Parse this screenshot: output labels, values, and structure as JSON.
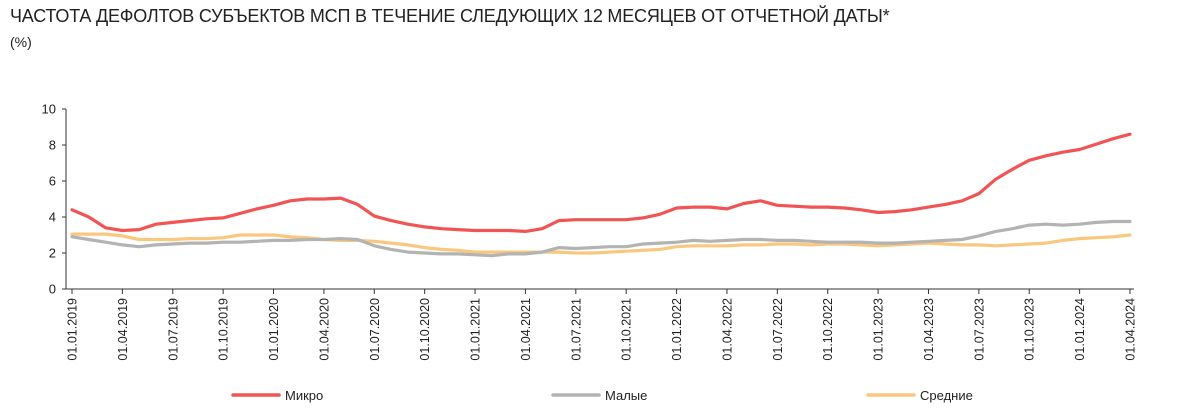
{
  "chart_data": {
    "type": "line",
    "title": "ЧАСТОТА ДЕФОЛТОВ СУБЪЕКТОВ МСП В ТЕЧЕНИЕ СЛЕДУЮЩИХ 12 МЕСЯЦЕВ ОТ ОТЧЕТНОЙ ДАТЫ*",
    "subtitle": "(%)",
    "ylim": [
      0,
      10
    ],
    "yticks": [
      0,
      2,
      4,
      6,
      8,
      10
    ],
    "grid": false,
    "legend_position": "bottom",
    "x_tick_labels": [
      "01.01.2019",
      "01.04.2019",
      "01.07.2019",
      "01.10.2019",
      "01.01.2020",
      "01.04.2020",
      "01.07.2020",
      "01.10.2020",
      "01.01.2021",
      "01.04.2021",
      "01.07.2021",
      "01.10.2021",
      "01.01.2022",
      "01.04.2022",
      "01.07.2022",
      "01.10.2022",
      "01.01.2023",
      "01.04.2023",
      "01.07.2023",
      "01.10.2023",
      "01.01.2024",
      "01.04.2024"
    ],
    "x": [
      "01.01.2019",
      "01.02.2019",
      "01.03.2019",
      "01.04.2019",
      "01.05.2019",
      "01.06.2019",
      "01.07.2019",
      "01.08.2019",
      "01.09.2019",
      "01.10.2019",
      "01.11.2019",
      "01.12.2019",
      "01.01.2020",
      "01.02.2020",
      "01.03.2020",
      "01.04.2020",
      "01.05.2020",
      "01.06.2020",
      "01.07.2020",
      "01.08.2020",
      "01.09.2020",
      "01.10.2020",
      "01.11.2020",
      "01.12.2020",
      "01.01.2021",
      "01.02.2021",
      "01.03.2021",
      "01.04.2021",
      "01.05.2021",
      "01.06.2021",
      "01.07.2021",
      "01.08.2021",
      "01.09.2021",
      "01.10.2021",
      "01.11.2021",
      "01.12.2021",
      "01.01.2022",
      "01.02.2022",
      "01.03.2022",
      "01.04.2022",
      "01.05.2022",
      "01.06.2022",
      "01.07.2022",
      "01.08.2022",
      "01.09.2022",
      "01.10.2022",
      "01.11.2022",
      "01.12.2022",
      "01.01.2023",
      "01.02.2023",
      "01.03.2023",
      "01.04.2023",
      "01.05.2023",
      "01.06.2023",
      "01.07.2023",
      "01.08.2023",
      "01.09.2023",
      "01.10.2023",
      "01.11.2023",
      "01.12.2023",
      "01.01.2024",
      "01.02.2024",
      "01.03.2024",
      "01.04.2024"
    ],
    "series": [
      {
        "name": "Микро",
        "color": "#f05454",
        "values": [
          4.4,
          4.0,
          3.4,
          3.25,
          3.3,
          3.6,
          3.7,
          3.8,
          3.9,
          3.95,
          4.2,
          4.45,
          4.65,
          4.9,
          5.0,
          5.0,
          5.05,
          4.7,
          4.05,
          3.8,
          3.6,
          3.45,
          3.35,
          3.3,
          3.25,
          3.25,
          3.25,
          3.2,
          3.35,
          3.8,
          3.85,
          3.85,
          3.85,
          3.85,
          3.95,
          4.15,
          4.5,
          4.55,
          4.55,
          4.45,
          4.75,
          4.9,
          4.65,
          4.6,
          4.55,
          4.55,
          4.5,
          4.4,
          4.25,
          4.3,
          4.4,
          4.55,
          4.7,
          4.9,
          5.3,
          6.1,
          6.65,
          7.15,
          7.4,
          7.6,
          7.75,
          8.05,
          8.35,
          8.6
        ]
      },
      {
        "name": "Малые",
        "color": "#b3b3b3",
        "values": [
          2.9,
          2.75,
          2.6,
          2.45,
          2.35,
          2.45,
          2.5,
          2.55,
          2.55,
          2.6,
          2.6,
          2.65,
          2.7,
          2.7,
          2.75,
          2.75,
          2.8,
          2.75,
          2.4,
          2.2,
          2.05,
          2.0,
          1.95,
          1.95,
          1.9,
          1.85,
          1.95,
          1.95,
          2.05,
          2.3,
          2.25,
          2.3,
          2.35,
          2.35,
          2.5,
          2.55,
          2.6,
          2.7,
          2.65,
          2.7,
          2.75,
          2.75,
          2.7,
          2.7,
          2.65,
          2.6,
          2.6,
          2.6,
          2.55,
          2.55,
          2.6,
          2.65,
          2.7,
          2.75,
          2.95,
          3.2,
          3.35,
          3.55,
          3.6,
          3.55,
          3.6,
          3.7,
          3.75,
          3.75
        ]
      },
      {
        "name": "Средние",
        "color": "#f9c77e",
        "values": [
          3.05,
          3.05,
          3.05,
          2.95,
          2.75,
          2.75,
          2.75,
          2.8,
          2.8,
          2.85,
          3.0,
          3.0,
          3.0,
          2.9,
          2.85,
          2.75,
          2.7,
          2.7,
          2.65,
          2.55,
          2.45,
          2.3,
          2.2,
          2.15,
          2.05,
          2.05,
          2.05,
          2.05,
          2.05,
          2.05,
          2.0,
          2.0,
          2.05,
          2.1,
          2.15,
          2.2,
          2.35,
          2.4,
          2.4,
          2.4,
          2.45,
          2.45,
          2.5,
          2.5,
          2.45,
          2.5,
          2.5,
          2.45,
          2.4,
          2.45,
          2.5,
          2.55,
          2.5,
          2.45,
          2.45,
          2.4,
          2.45,
          2.5,
          2.55,
          2.7,
          2.8,
          2.85,
          2.9,
          3.0
        ]
      }
    ]
  }
}
